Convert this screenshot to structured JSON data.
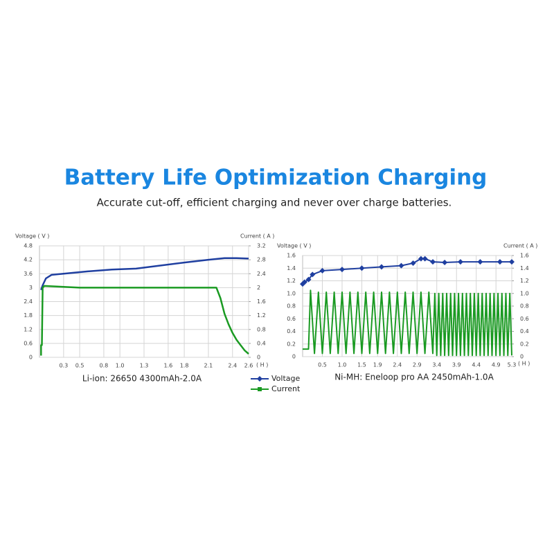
{
  "header": {
    "title": "Battery Life Optimization Charging",
    "subtitle": "Accurate cut-off, efficient charging and never over charge batteries."
  },
  "chart_data": [
    {
      "type": "line",
      "caption": "Li-ion: 26650 4300mAh-2.0A",
      "y_label": "Voltage ( V )",
      "y2_label": "Current ( A )",
      "x_unit": "( H )",
      "grid": true,
      "markers": false,
      "xlim": [
        0,
        2.6
      ],
      "xticks": [
        0.3,
        0.5,
        0.8,
        {
          "value": 1,
          "label": "1.0"
        },
        1.3,
        1.6,
        1.8,
        2.1,
        2.4,
        2.6
      ],
      "ylim": [
        0,
        4.8
      ],
      "yticks": [
        0,
        0.6,
        1.2,
        1.8,
        2.4,
        3,
        3.6,
        4.2,
        4.8
      ],
      "y2lim": [
        0,
        3.2
      ],
      "y2ticks": [
        0,
        0.4,
        0.8,
        1.2,
        1.6,
        2,
        2.4,
        2.8,
        3.2
      ],
      "series": [
        {
          "name": "Voltage",
          "color": "#1f3fa0",
          "marker": "diamond",
          "x": [
            0.02,
            0.04,
            0.08,
            0.15,
            0.3,
            0.6,
            0.9,
            1.2,
            1.5,
            1.8,
            2.1,
            2.3,
            2.45,
            2.6
          ],
          "values": [
            2.9,
            3.1,
            3.4,
            3.55,
            3.6,
            3.7,
            3.78,
            3.82,
            3.95,
            4.08,
            4.2,
            4.27,
            4.27,
            4.25
          ]
        },
        {
          "name": "Current",
          "color": "#1a9a22",
          "marker": "square",
          "axis": "y2",
          "x": [
            0.02,
            0.02,
            0.03,
            0.04,
            0.06,
            0.5,
            1.0,
            1.5,
            2.0,
            2.2,
            2.25,
            2.3,
            2.35,
            2.4,
            2.45,
            2.5,
            2.55,
            2.6
          ],
          "values": [
            0.05,
            0.35,
            0.35,
            2.0,
            2.05,
            2.0,
            2.0,
            2.0,
            2.0,
            2.0,
            1.7,
            1.25,
            0.95,
            0.7,
            0.5,
            0.35,
            0.2,
            0.1
          ]
        }
      ]
    },
    {
      "type": "line",
      "caption": "Ni-MH: Eneloop pro AA 2450mAh-1.0A",
      "y_label": "Voltage ( V )",
      "y2_label": "Current ( A )",
      "x_unit": "( H )",
      "grid": true,
      "markers": true,
      "xlim": [
        0,
        5.3
      ],
      "xticks": [
        0.5,
        {
          "value": 1,
          "label": "1.0"
        },
        1.5,
        1.9,
        2.4,
        2.9,
        3.4,
        3.9,
        4.4,
        4.9,
        5.3
      ],
      "ylim": [
        0,
        1.6
      ],
      "yticks": [
        0,
        0.2,
        0.4,
        0.6,
        0.8,
        {
          "value": 1,
          "label": "1.0"
        },
        1.2,
        1.4,
        1.6
      ],
      "y2lim": [
        0,
        1.6
      ],
      "y2ticks": [
        0,
        0.2,
        0.4,
        0.6,
        0.8,
        {
          "value": 1,
          "label": "1.0"
        },
        1.2,
        1.4,
        1.6
      ],
      "series": [
        {
          "color": "#1f3fa0",
          "marker": "diamond",
          "x": [
            0,
            0.05,
            0.15,
            0.25,
            0.5,
            1,
            1.5,
            2,
            2.5,
            2.8,
            3.0,
            3.1,
            3.3,
            3.6,
            4,
            4.5,
            5,
            5.3
          ],
          "values": [
            1.15,
            1.18,
            1.22,
            1.3,
            1.36,
            1.38,
            1.4,
            1.42,
            1.44,
            1.48,
            1.55,
            1.55,
            1.5,
            1.49,
            1.5,
            1.5,
            1.5,
            1.5
          ]
        },
        {
          "color": "#1a9a22",
          "marker": "square",
          "axis": "y2",
          "x": [
            0,
            0.15,
            0.2,
            0.3,
            0.4,
            0.5,
            0.6,
            0.7,
            0.8,
            0.9,
            1.0,
            1.1,
            1.2,
            1.3,
            1.4,
            1.5,
            1.6,
            1.7,
            1.8,
            1.9,
            2.0,
            2.1,
            2.2,
            2.3,
            2.4,
            2.5,
            2.6,
            2.7,
            2.8,
            2.9,
            3.0,
            3.1,
            3.2,
            3.3,
            3.35,
            3.4,
            3.45,
            3.5,
            3.55,
            3.6,
            3.65,
            3.7,
            3.75,
            3.8,
            3.85,
            3.9,
            3.95,
            4.0,
            4.05,
            4.1,
            4.15,
            4.2,
            4.25,
            4.3,
            4.35,
            4.4,
            4.45,
            4.5,
            4.55,
            4.6,
            4.65,
            4.7,
            4.75,
            4.8,
            4.85,
            4.9,
            4.95,
            5.0,
            5.05,
            5.1,
            5.15,
            5.2,
            5.25,
            5.3
          ],
          "values": [
            0.12,
            0.12,
            1.05,
            0.05,
            1.02,
            0.05,
            1.02,
            0.05,
            1.02,
            0.05,
            1.02,
            0.05,
            1.02,
            0.05,
            1.02,
            0.05,
            1.02,
            0.05,
            1.02,
            0.05,
            1.02,
            0.05,
            1.02,
            0.05,
            1.02,
            0.05,
            1.02,
            0.05,
            1.02,
            0.05,
            1.02,
            0.05,
            1.02,
            0.05,
            1.0,
            0.02,
            1.0,
            0.02,
            1.0,
            0.02,
            1.0,
            0.02,
            1.0,
            0.02,
            1.0,
            0.02,
            1.0,
            0.02,
            1.0,
            0.02,
            1.0,
            0.02,
            1.0,
            0.02,
            1.0,
            0.02,
            1.0,
            0.02,
            1.0,
            0.02,
            1.0,
            0.02,
            1.0,
            0.02,
            1.0,
            0.02,
            1.0,
            0.02,
            1.0,
            0.02,
            1.0,
            0.02,
            1.0,
            0.02
          ]
        }
      ]
    }
  ]
}
